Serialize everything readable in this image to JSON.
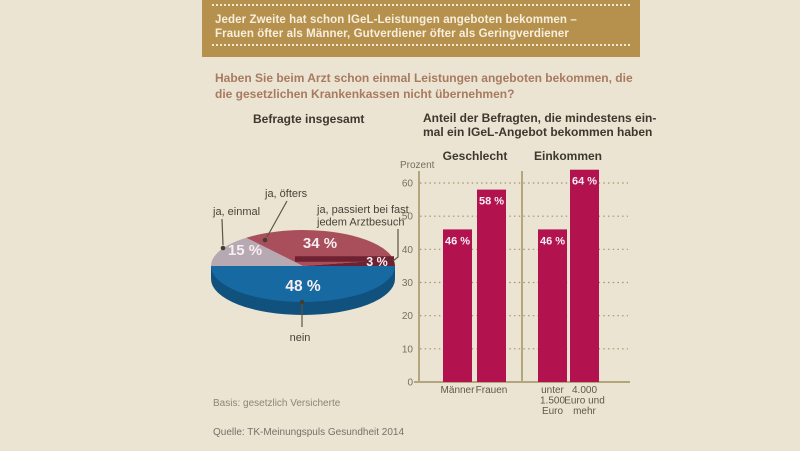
{
  "banner": {
    "line1": "Jeder Zweite hat schon IGeL-Leistungen angeboten bekommen –",
    "line2": "Frauen öfter als Männer, Gutverdiener öfter als Geringverdiener"
  },
  "question": {
    "line1": "Haben Sie beim Arzt schon einmal Leistungen angeboten bekommen, die",
    "line2": "die gesetzlichen Krankenkassen nicht übernehmen?"
  },
  "left_panel": {
    "title": "Befragte insgesamt",
    "basis_note": "Basis: gesetzlich Versicherte"
  },
  "right_panel": {
    "title_line1": "Anteil der Befragten, die mindestens ein-",
    "title_line2": "mal ein IGeL-Angebot bekommen haben"
  },
  "source": "Quelle: TK-Meinungspuls Gesundheit 2014",
  "colors": {
    "background": "#ebe4d2",
    "banner_bg": "#b6914e",
    "banner_text": "#f7efdc",
    "question_text": "#a87a60",
    "heading_text": "#3d382e",
    "pie_blue": "#1769a2",
    "pie_blue_dark": "#10517e",
    "pie_gray": "#b7a9b1",
    "pie_red": "#a84f5b",
    "pie_maroon": "#6e2130",
    "bar_fill": "#b2134f",
    "axis_line": "#b3a67c",
    "grid_dots": "#a2956c",
    "tick_text": "#75705c",
    "category_text": "#5e594a",
    "annotation_text": "#474338",
    "leader_line": "#5a5547",
    "leader_dot": "#433e31",
    "value_label_text": "#f7eef3",
    "basis_text": "#8d8672",
    "source_text": "#75706b"
  },
  "chart_data": [
    {
      "type": "pie",
      "title": "Befragte insgesamt",
      "note": "Basis: gesetzlich Versicherte",
      "slices": [
        {
          "key": "ja_einmal",
          "label": "ja, einmal",
          "label_lines": [
            "ja, einmal"
          ],
          "value": 15,
          "display": "15 %",
          "color_key": "pie_gray"
        },
        {
          "key": "ja_oefters",
          "label": "ja, öfters",
          "label_lines": [
            "ja, öfters"
          ],
          "value": 34,
          "display": "34 %",
          "color_key": "pie_red"
        },
        {
          "key": "ja_fast",
          "label": "ja, passiert bei fast jedem Arztbesuch",
          "label_lines": [
            "ja, passiert bei fast",
            "jedem Arztbesuch"
          ],
          "value": 3,
          "display": "3 %",
          "color_key": "pie_maroon"
        },
        {
          "key": "nein",
          "label": "nein",
          "label_lines": [
            "nein"
          ],
          "value": 48,
          "display": "48 %",
          "color_key": "pie_blue"
        }
      ]
    },
    {
      "type": "bar",
      "title": "Anteil der Befragten, die mindestens einmal ein IGeL-Angebot bekommen haben",
      "ylabel": "Prozent",
      "ylim": [
        0,
        65
      ],
      "yticks": [
        0,
        10,
        20,
        30,
        40,
        50,
        60
      ],
      "grid": "dotted horizontal",
      "legend": "none",
      "groups": [
        {
          "name": "Geschlecht",
          "bars": [
            {
              "label": "Männer",
              "label_lines": [
                "Männer"
              ],
              "value": 46,
              "display": "46 %"
            },
            {
              "label": "Frauen",
              "label_lines": [
                "Frauen"
              ],
              "value": 58,
              "display": "58 %"
            }
          ]
        },
        {
          "name": "Einkommen",
          "bars": [
            {
              "label": "unter 1.500 Euro",
              "label_lines": [
                "unter",
                "1.500",
                "Euro"
              ],
              "value": 46,
              "display": "46 %"
            },
            {
              "label": "4.000 Euro und mehr",
              "label_lines": [
                "4.000",
                "Euro und",
                "mehr"
              ],
              "value": 64,
              "display": "64 %"
            }
          ]
        }
      ]
    }
  ]
}
